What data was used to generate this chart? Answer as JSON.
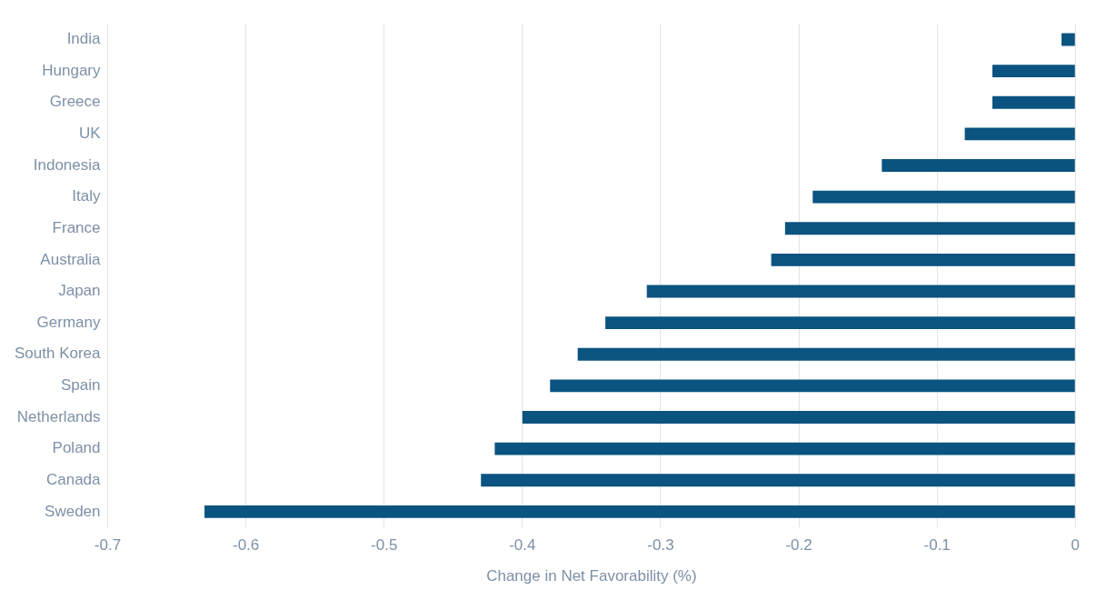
{
  "chart_data": {
    "type": "bar",
    "orientation": "horizontal",
    "xlabel": "Change in Net Favorability (%)",
    "categories": [
      "India",
      "Hungary",
      "Greece",
      "UK",
      "Indonesia",
      "Italy",
      "France",
      "Australia",
      "Japan",
      "Germany",
      "South Korea",
      "Spain",
      "Netherlands",
      "Poland",
      "Canada",
      "Sweden"
    ],
    "values": [
      -0.01,
      -0.06,
      -0.06,
      -0.08,
      -0.14,
      -0.19,
      -0.21,
      -0.22,
      -0.31,
      -0.34,
      -0.36,
      -0.38,
      -0.4,
      -0.42,
      -0.43,
      -0.63
    ],
    "color": "#0b5380",
    "xlim": [
      -0.7,
      0
    ],
    "xticks": [
      -0.7,
      -0.6,
      -0.5,
      -0.4,
      -0.3,
      -0.2,
      -0.1,
      0
    ],
    "grid": "x"
  }
}
